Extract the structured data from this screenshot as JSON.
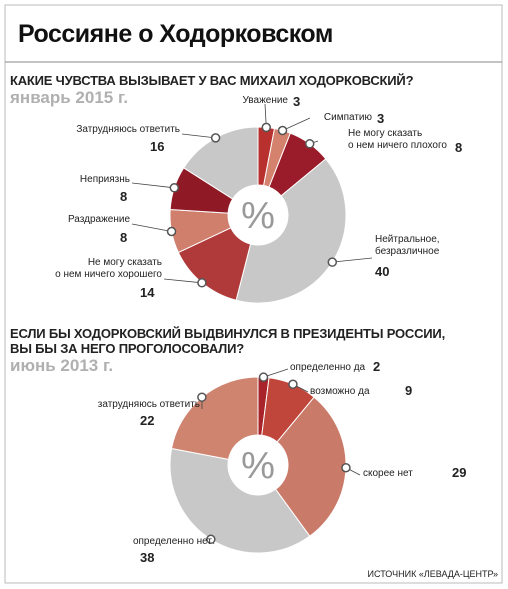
{
  "title": "Россияне о Ходорковском",
  "source": "ИСТОЧНИК «ЛЕВАДА-ЦЕНТР»",
  "chart_data": [
    {
      "type": "donut",
      "title": "КАКИЕ ЧУВСТВА ВЫЗЫВАЕТ У ВАС МИХАИЛ ХОДОРКОВСКИЙ?",
      "subtitle": "январь 2015 г.",
      "center_label": "%",
      "categories": [
        "Уважение",
        "Симпатию",
        "Не могу сказать\nо нем ничего плохого",
        "Нейтральное,\nбезразличное",
        "Не могу сказать\nо нем ничего хорошего",
        "Раздражение",
        "Неприязнь",
        "Затрудняюсь ответить"
      ],
      "values": [
        3,
        3,
        8,
        40,
        14,
        8,
        8,
        16
      ],
      "colors": [
        "#b8312f",
        "#d4826e",
        "#9a1b2a",
        "#c8c8c8",
        "#b03a3a",
        "#cf7f6c",
        "#8f1a26",
        "#c8c8c8"
      ]
    },
    {
      "type": "donut",
      "title": "ЕСЛИ БЫ ХОДОРКОВСКИЙ ВЫДВИНУЛСЯ В ПРЕЗИДЕНТЫ РОССИИ,\nВЫ БЫ ЗА НЕГО ПРОГОЛОСОВАЛИ?",
      "subtitle": "июнь 2013 г.",
      "center_label": "%",
      "categories": [
        "определенно да",
        "возможно да",
        "скорее нет",
        "определенно нет",
        "затрудняюсь ответить"
      ],
      "values": [
        2,
        9,
        29,
        38,
        22
      ],
      "colors": [
        "#a8232a",
        "#c0453a",
        "#c97a68",
        "#c8c8c8",
        "#cf8470"
      ]
    }
  ]
}
